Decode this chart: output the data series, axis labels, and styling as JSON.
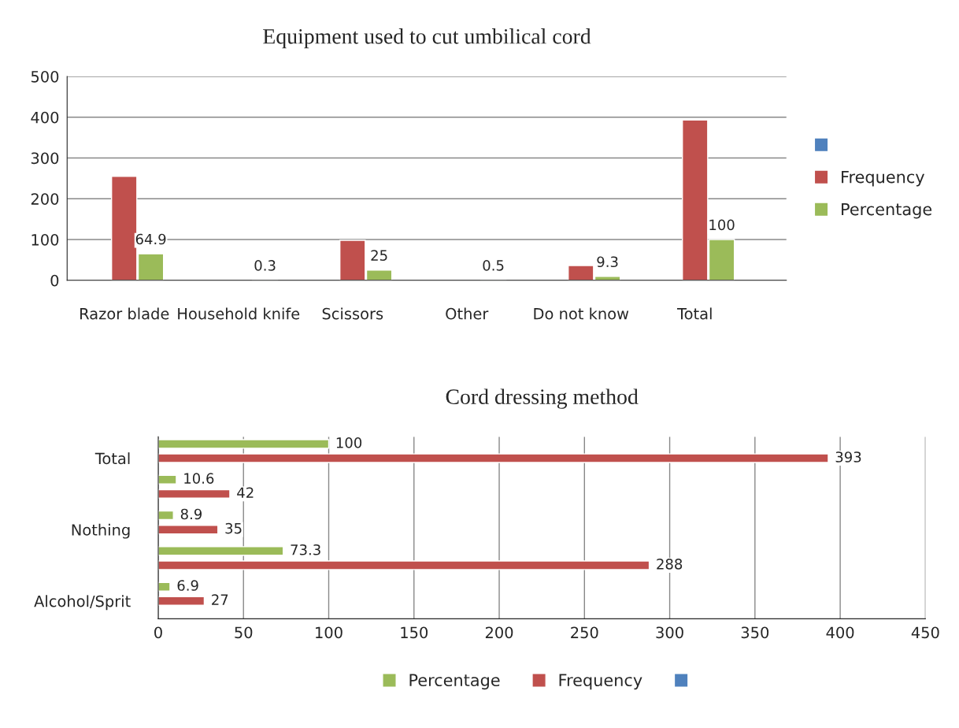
{
  "chart_data": [
    {
      "type": "bar",
      "title": "Equipment used to cut umbilical cord",
      "categories": [
        "Razor blade",
        "Household knife",
        "Scissors",
        "Other",
        "Do not know",
        "Total"
      ],
      "series": [
        {
          "color": "#4f81bd",
          "values": [
            null,
            null,
            null,
            null,
            null,
            null
          ]
        },
        {
          "name": "Frequency",
          "color": "#c0504d",
          "values": [
            255,
            null,
            98,
            null,
            36,
            393
          ]
        },
        {
          "name": "Percentage",
          "color": "#9bbb59",
          "values": [
            64.9,
            0.3,
            25,
            0.5,
            9.3,
            100
          ],
          "value_labels": [
            "64.9",
            "0.3",
            "25",
            "0.5",
            "9.3",
            "100"
          ]
        }
      ],
      "ylim": [
        0,
        500
      ],
      "yticks": [
        0,
        100,
        200,
        300,
        400,
        500
      ],
      "grid": "y",
      "legend": "right"
    },
    {
      "type": "bar",
      "title": "Cord dressing method",
      "orientation": "horizontal",
      "categories": [
        "Total",
        null,
        "Nothing",
        null,
        "Alcohol/Sprit"
      ],
      "series": [
        {
          "name": "Percentage",
          "color": "#9bbb59",
          "values": [
            100,
            10.6,
            8.9,
            73.3,
            6.9
          ]
        },
        {
          "name": "Frequency",
          "color": "#c0504d",
          "values": [
            393,
            42,
            35,
            288,
            27
          ]
        },
        {
          "color": "#4f81bd",
          "values": [
            null,
            null,
            null,
            null,
            null
          ]
        }
      ],
      "xlim": [
        0,
        450
      ],
      "xticks": [
        0,
        50,
        100,
        150,
        200,
        250,
        300,
        350,
        400,
        450
      ],
      "grid": "x",
      "legend": "bottom",
      "data_labels": true
    }
  ]
}
